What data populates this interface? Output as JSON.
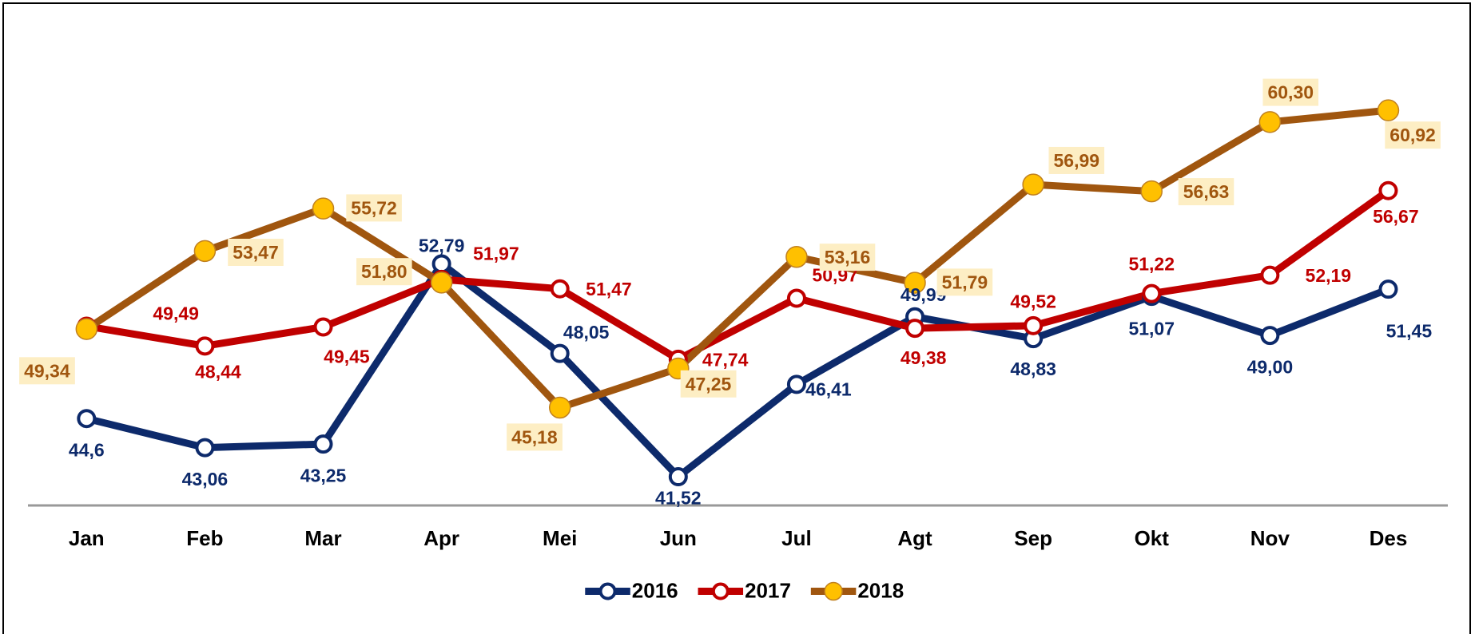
{
  "chart_data": {
    "type": "line",
    "categories": [
      "Jan",
      "Feb",
      "Mar",
      "Apr",
      "Mei",
      "Jun",
      "Jul",
      "Agt",
      "Sep",
      "Okt",
      "Nov",
      "Des"
    ],
    "ylim": [
      40,
      66
    ],
    "legend": "bottom",
    "series": [
      {
        "name": "2016",
        "color": "#0d2a6b",
        "marker_fill": "#ffffff",
        "values": [
          44.6,
          43.06,
          43.25,
          52.79,
          48.05,
          41.52,
          46.41,
          49.99,
          48.83,
          51.07,
          49.0,
          51.45
        ],
        "value_labels": [
          "44,6",
          "43,06",
          "43,25",
          "52,79",
          "48,05",
          "41,52",
          "46,41",
          "49,99",
          "48,83",
          "51,07",
          "49,00",
          "51,45"
        ]
      },
      {
        "name": "2017",
        "color": "#c00000",
        "marker_fill": "#ffffff",
        "values": [
          49.49,
          48.44,
          49.45,
          51.97,
          51.47,
          47.74,
          50.97,
          49.38,
          49.52,
          51.22,
          52.19,
          56.67
        ],
        "value_labels": [
          "49,49",
          "48,44",
          "49,45",
          "51,97",
          "51,47",
          "47,74",
          "50,97",
          "49,38",
          "49,52",
          "51,22",
          "52,19",
          "56,67"
        ]
      },
      {
        "name": "2018",
        "color": "#a0560f",
        "marker_fill": "#ffc000",
        "values": [
          49.34,
          53.47,
          55.72,
          51.8,
          45.18,
          47.25,
          53.16,
          51.79,
          56.99,
          56.63,
          60.3,
          60.92
        ],
        "value_labels": [
          "49,34",
          "53,47",
          "55,72",
          "51,80",
          "45,18",
          "47,25",
          "53,16",
          "51,79",
          "56,99",
          "56,63",
          "60,30",
          "60,92"
        ]
      }
    ]
  }
}
